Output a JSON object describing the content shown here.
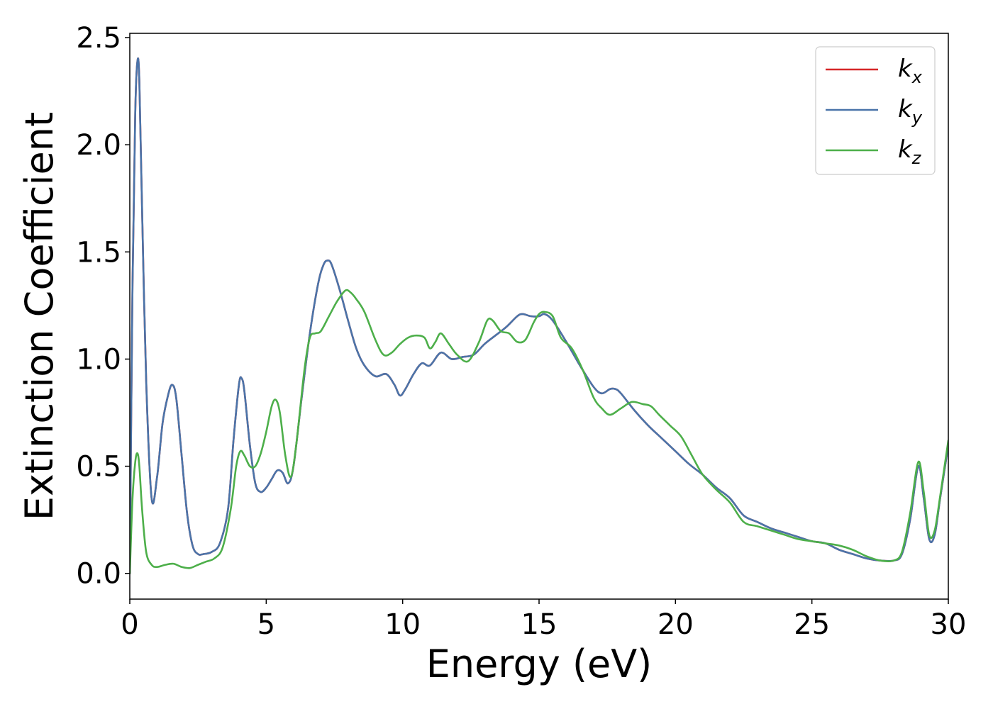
{
  "chart_data": {
    "type": "line",
    "title": "",
    "xlabel": "Energy (eV)",
    "ylabel": "Extinction Coefficient",
    "xlim": [
      0,
      30
    ],
    "ylim": [
      -0.12,
      2.52
    ],
    "xticks": [
      0,
      5,
      10,
      15,
      20,
      25,
      30
    ],
    "xtick_labels": [
      "0",
      "5",
      "10",
      "15",
      "20",
      "25",
      "30"
    ],
    "yticks": [
      0.0,
      0.5,
      1.0,
      1.5,
      2.0,
      2.5
    ],
    "ytick_labels": [
      "0.0",
      "0.5",
      "1.0",
      "1.5",
      "2.0",
      "2.5"
    ],
    "grid": false,
    "legend_position": "top-right",
    "series": [
      {
        "name": "k",
        "subscript": "x",
        "color": "#d62728",
        "x": [
          0,
          0.1,
          0.2,
          0.28,
          0.35,
          0.45,
          0.6,
          0.8,
          1.0,
          1.2,
          1.4,
          1.55,
          1.7,
          1.9,
          2.1,
          2.3,
          2.5,
          2.7,
          3.0,
          3.3,
          3.6,
          3.8,
          4.0,
          4.1,
          4.2,
          4.4,
          4.6,
          4.8,
          5.0,
          5.2,
          5.4,
          5.6,
          5.8,
          6.0,
          6.3,
          6.6,
          6.9,
          7.1,
          7.25,
          7.4,
          7.7,
          8.0,
          8.3,
          8.6,
          9.0,
          9.4,
          9.7,
          9.9,
          10.1,
          10.4,
          10.7,
          11.0,
          11.4,
          11.8,
          12.2,
          12.6,
          13.0,
          13.4,
          13.8,
          14.2,
          14.4,
          14.7,
          15.0,
          15.2,
          15.5,
          16.0,
          16.5,
          17.0,
          17.3,
          17.6,
          17.8,
          18.0,
          18.5,
          19.0,
          19.5,
          20.0,
          20.5,
          21.0,
          21.5,
          22.0,
          22.5,
          23.0,
          23.5,
          24.0,
          24.5,
          25.0,
          25.5,
          26.0,
          26.5,
          27.0,
          27.5,
          28.0,
          28.3,
          28.6,
          28.9,
          29.1,
          29.3,
          29.5,
          29.7,
          30.0
        ],
        "y": [
          0.0,
          1.35,
          2.15,
          2.39,
          2.3,
          1.7,
          0.9,
          0.35,
          0.45,
          0.7,
          0.83,
          0.88,
          0.82,
          0.55,
          0.28,
          0.13,
          0.09,
          0.09,
          0.1,
          0.14,
          0.3,
          0.62,
          0.88,
          0.91,
          0.85,
          0.6,
          0.42,
          0.38,
          0.4,
          0.44,
          0.48,
          0.47,
          0.42,
          0.5,
          0.82,
          1.12,
          1.35,
          1.44,
          1.46,
          1.44,
          1.32,
          1.18,
          1.05,
          0.97,
          0.92,
          0.93,
          0.88,
          0.83,
          0.86,
          0.93,
          0.98,
          0.97,
          1.03,
          1.0,
          1.01,
          1.02,
          1.07,
          1.11,
          1.15,
          1.2,
          1.21,
          1.2,
          1.2,
          1.21,
          1.18,
          1.08,
          0.97,
          0.87,
          0.84,
          0.86,
          0.86,
          0.84,
          0.76,
          0.69,
          0.63,
          0.57,
          0.51,
          0.46,
          0.4,
          0.35,
          0.27,
          0.24,
          0.21,
          0.19,
          0.17,
          0.15,
          0.14,
          0.11,
          0.09,
          0.07,
          0.06,
          0.06,
          0.09,
          0.25,
          0.5,
          0.35,
          0.16,
          0.18,
          0.35,
          0.6
        ]
      },
      {
        "name": "k",
        "subscript": "y",
        "color": "#4a74a9",
        "x": [
          0,
          0.1,
          0.2,
          0.28,
          0.35,
          0.45,
          0.6,
          0.8,
          1.0,
          1.2,
          1.4,
          1.55,
          1.7,
          1.9,
          2.1,
          2.3,
          2.5,
          2.7,
          3.0,
          3.3,
          3.6,
          3.8,
          4.0,
          4.1,
          4.2,
          4.4,
          4.6,
          4.8,
          5.0,
          5.2,
          5.4,
          5.6,
          5.8,
          6.0,
          6.3,
          6.6,
          6.9,
          7.1,
          7.25,
          7.4,
          7.7,
          8.0,
          8.3,
          8.6,
          9.0,
          9.4,
          9.7,
          9.9,
          10.1,
          10.4,
          10.7,
          11.0,
          11.4,
          11.8,
          12.2,
          12.6,
          13.0,
          13.4,
          13.8,
          14.2,
          14.4,
          14.7,
          15.0,
          15.2,
          15.5,
          16.0,
          16.5,
          17.0,
          17.3,
          17.6,
          17.8,
          18.0,
          18.5,
          19.0,
          19.5,
          20.0,
          20.5,
          21.0,
          21.5,
          22.0,
          22.5,
          23.0,
          23.5,
          24.0,
          24.5,
          25.0,
          25.5,
          26.0,
          26.5,
          27.0,
          27.5,
          28.0,
          28.3,
          28.6,
          28.9,
          29.1,
          29.3,
          29.5,
          29.7,
          30.0
        ],
        "y": [
          0.0,
          1.35,
          2.15,
          2.39,
          2.3,
          1.7,
          0.9,
          0.35,
          0.45,
          0.7,
          0.83,
          0.88,
          0.82,
          0.55,
          0.28,
          0.13,
          0.09,
          0.09,
          0.1,
          0.14,
          0.3,
          0.62,
          0.88,
          0.91,
          0.85,
          0.6,
          0.42,
          0.38,
          0.4,
          0.44,
          0.48,
          0.47,
          0.42,
          0.5,
          0.82,
          1.12,
          1.35,
          1.44,
          1.46,
          1.44,
          1.32,
          1.18,
          1.05,
          0.97,
          0.92,
          0.93,
          0.88,
          0.83,
          0.86,
          0.93,
          0.98,
          0.97,
          1.03,
          1.0,
          1.01,
          1.02,
          1.07,
          1.11,
          1.15,
          1.2,
          1.21,
          1.2,
          1.2,
          1.21,
          1.18,
          1.08,
          0.97,
          0.87,
          0.84,
          0.86,
          0.86,
          0.84,
          0.76,
          0.69,
          0.63,
          0.57,
          0.51,
          0.46,
          0.4,
          0.35,
          0.27,
          0.24,
          0.21,
          0.19,
          0.17,
          0.15,
          0.14,
          0.11,
          0.09,
          0.07,
          0.06,
          0.06,
          0.09,
          0.25,
          0.5,
          0.35,
          0.16,
          0.18,
          0.35,
          0.6
        ]
      },
      {
        "name": "k",
        "subscript": "z",
        "color": "#4daf4a",
        "x": [
          0,
          0.1,
          0.2,
          0.28,
          0.35,
          0.45,
          0.6,
          0.8,
          1.0,
          1.3,
          1.6,
          1.9,
          2.2,
          2.5,
          2.8,
          3.1,
          3.4,
          3.7,
          3.9,
          4.05,
          4.2,
          4.4,
          4.6,
          4.8,
          5.0,
          5.2,
          5.35,
          5.5,
          5.7,
          5.9,
          6.1,
          6.4,
          6.6,
          6.8,
          7.0,
          7.3,
          7.6,
          7.9,
          8.1,
          8.3,
          8.6,
          9.0,
          9.3,
          9.6,
          9.9,
          10.2,
          10.5,
          10.8,
          11.0,
          11.2,
          11.4,
          11.7,
          12.0,
          12.4,
          12.8,
          13.1,
          13.3,
          13.6,
          13.9,
          14.2,
          14.5,
          14.8,
          15.0,
          15.2,
          15.5,
          15.8,
          16.2,
          16.6,
          17.0,
          17.3,
          17.6,
          18.0,
          18.4,
          18.8,
          19.1,
          19.4,
          19.8,
          20.2,
          20.6,
          21.0,
          21.5,
          22.0,
          22.5,
          23.0,
          23.5,
          24.0,
          24.5,
          25.0,
          25.5,
          26.0,
          26.5,
          27.0,
          27.5,
          28.0,
          28.3,
          28.6,
          28.9,
          29.1,
          29.3,
          29.5,
          29.7,
          30.0
        ],
        "y": [
          0.0,
          0.35,
          0.52,
          0.56,
          0.5,
          0.3,
          0.1,
          0.04,
          0.03,
          0.04,
          0.045,
          0.03,
          0.025,
          0.04,
          0.055,
          0.07,
          0.12,
          0.3,
          0.5,
          0.57,
          0.55,
          0.5,
          0.5,
          0.56,
          0.66,
          0.78,
          0.81,
          0.75,
          0.55,
          0.45,
          0.6,
          0.95,
          1.1,
          1.12,
          1.13,
          1.2,
          1.27,
          1.32,
          1.31,
          1.28,
          1.22,
          1.09,
          1.02,
          1.03,
          1.07,
          1.1,
          1.11,
          1.1,
          1.05,
          1.08,
          1.12,
          1.07,
          1.02,
          0.99,
          1.08,
          1.18,
          1.18,
          1.13,
          1.12,
          1.08,
          1.09,
          1.17,
          1.21,
          1.22,
          1.2,
          1.1,
          1.05,
          0.95,
          0.82,
          0.77,
          0.74,
          0.77,
          0.8,
          0.79,
          0.78,
          0.74,
          0.69,
          0.64,
          0.55,
          0.46,
          0.39,
          0.33,
          0.24,
          0.22,
          0.2,
          0.18,
          0.16,
          0.15,
          0.14,
          0.13,
          0.11,
          0.08,
          0.06,
          0.06,
          0.1,
          0.28,
          0.52,
          0.38,
          0.18,
          0.2,
          0.36,
          0.62
        ]
      }
    ]
  }
}
